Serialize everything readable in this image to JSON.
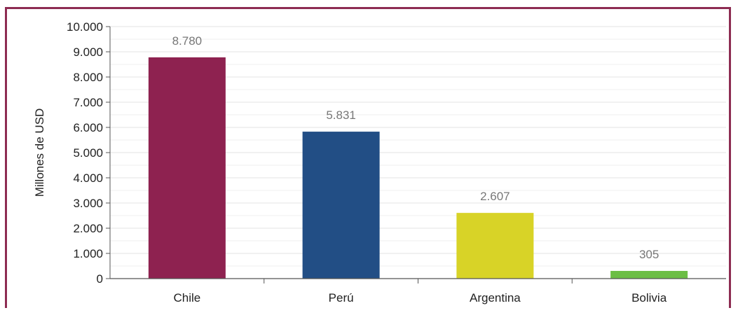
{
  "chart_data": {
    "type": "bar",
    "ylabel": "Millones de USD",
    "xlabel": "",
    "title": "",
    "ylim": [
      0,
      10000
    ],
    "yticks": [
      0,
      1000,
      2000,
      3000,
      4000,
      5000,
      6000,
      7000,
      8000,
      9000,
      10000
    ],
    "ytick_labels": [
      "0",
      "1.000",
      "2.000",
      "3.000",
      "4.000",
      "5.000",
      "6.000",
      "7.000",
      "8.000",
      "9.000",
      "10.000"
    ],
    "categories": [
      "Chile",
      "Perú",
      "Argentina",
      "Bolivia"
    ],
    "values": [
      8780,
      5831,
      2607,
      305
    ],
    "value_labels": [
      "8.780",
      "5.831",
      "2.607",
      "305"
    ],
    "colors": [
      "#8e2250",
      "#224e85",
      "#d8d327",
      "#6cbe45"
    ],
    "frame_color": "#8d2c52",
    "grid": true,
    "legend": "none"
  }
}
